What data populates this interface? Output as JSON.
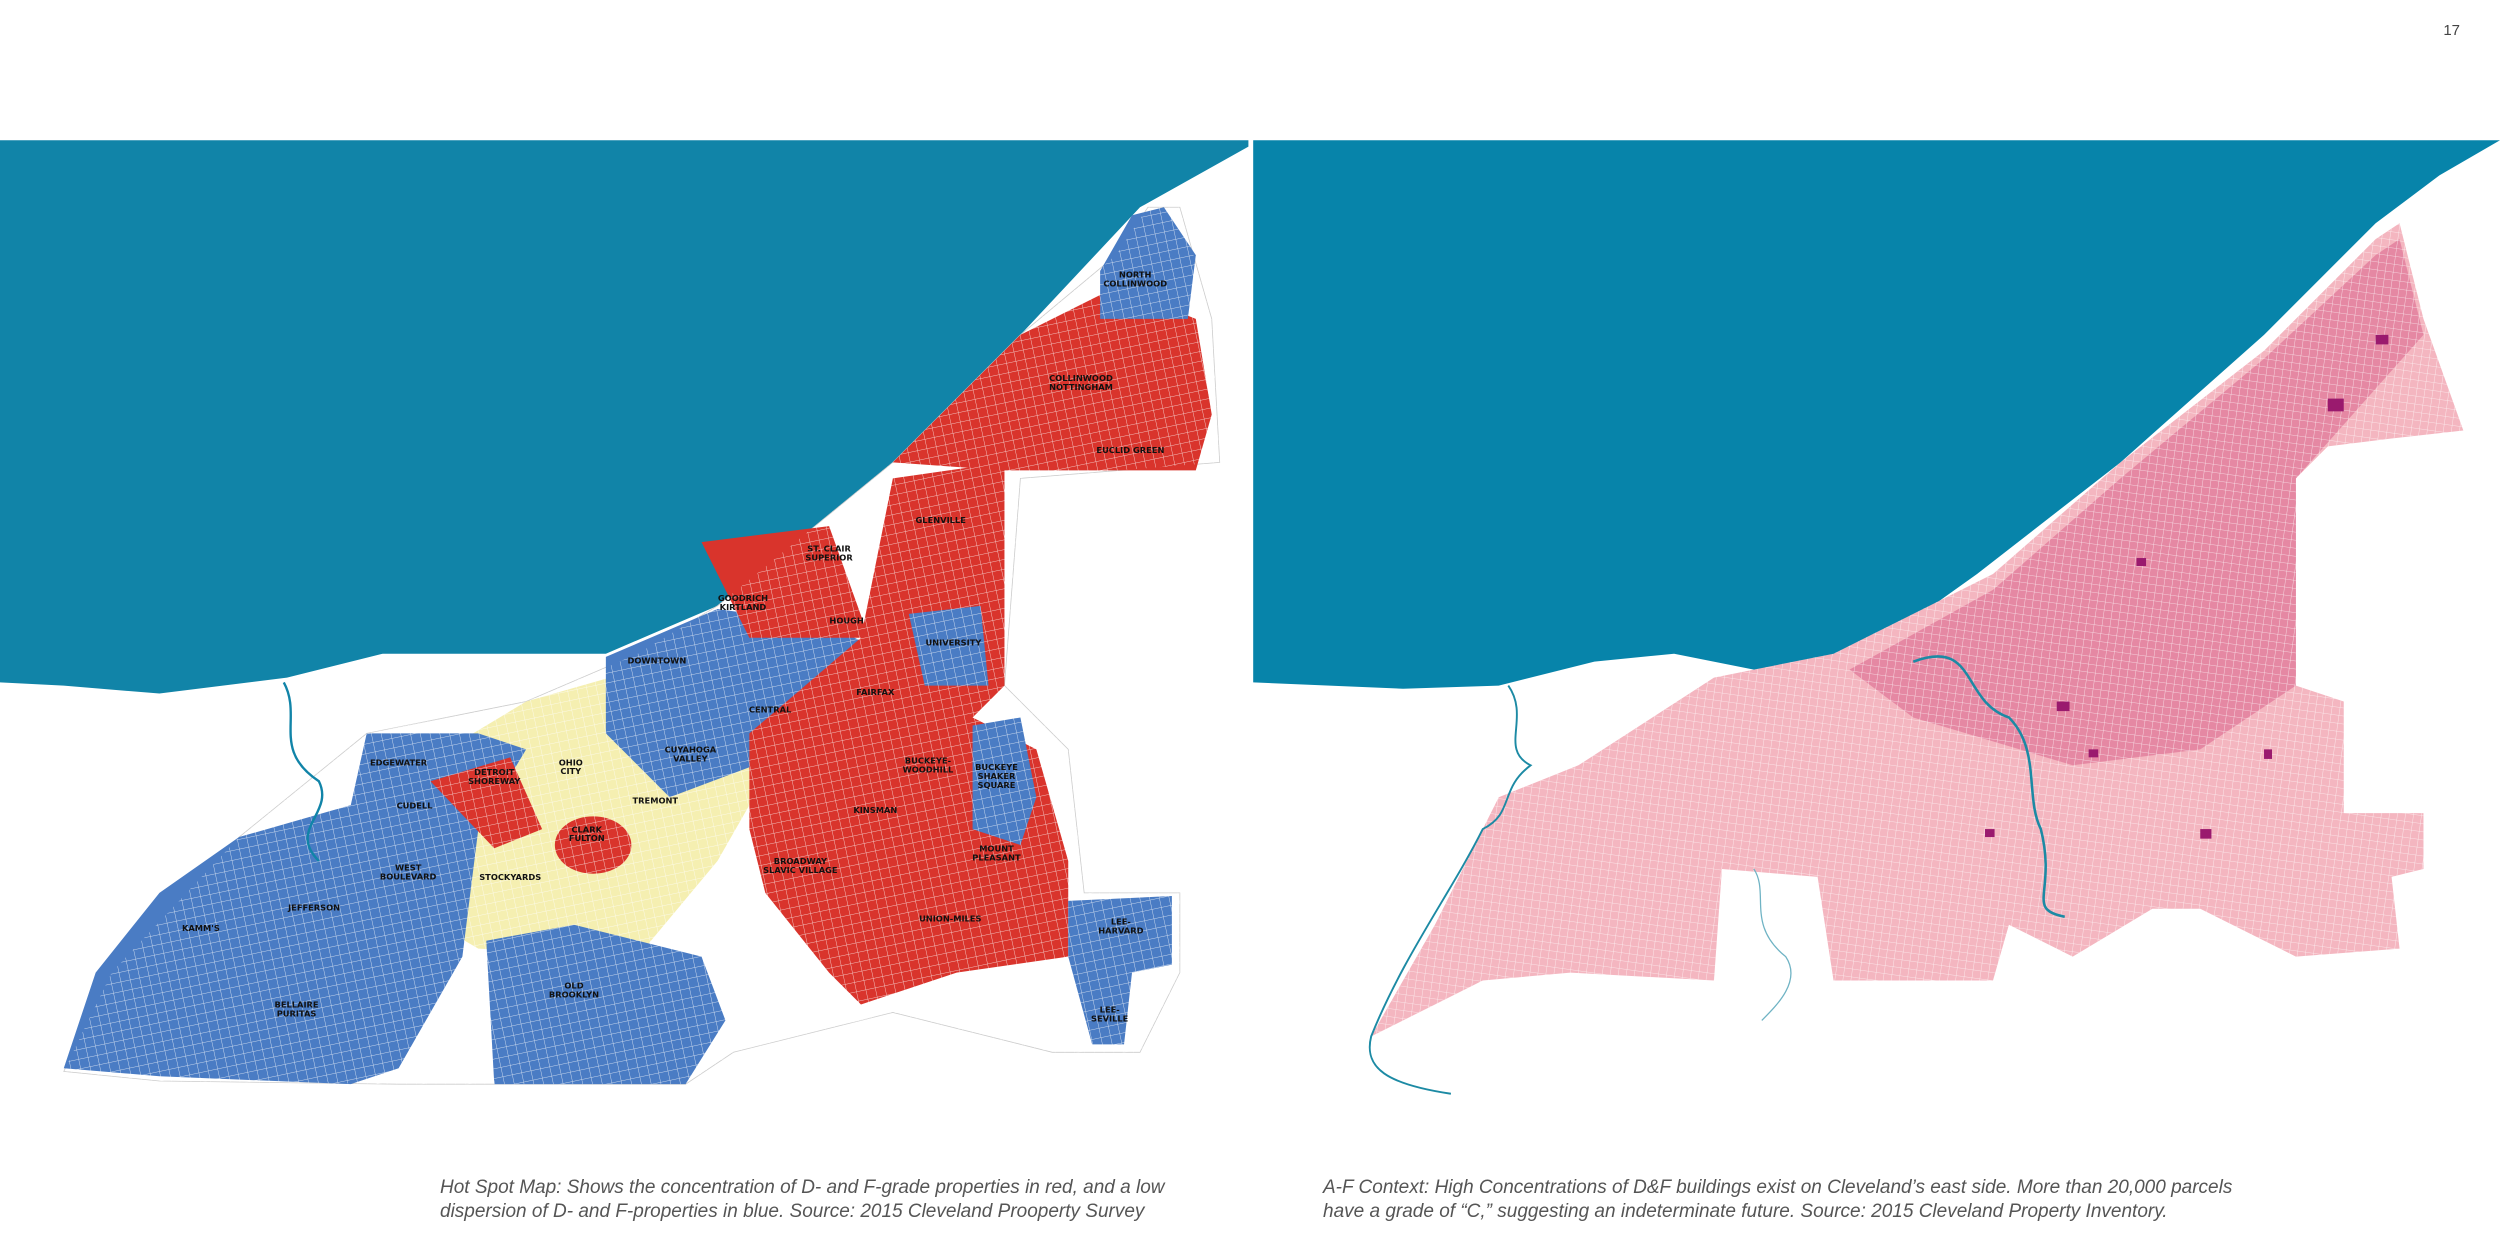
{
  "page_number": "17",
  "left_map": {
    "labels": [
      {
        "lines": [
          "NORTH",
          "COLLINWOOD"
        ]
      },
      {
        "lines": [
          "COLLINWOOD",
          "NOTTINGHAM"
        ]
      },
      {
        "lines": [
          "EUCLID GREEN"
        ]
      },
      {
        "lines": [
          "GLENVILLE"
        ]
      },
      {
        "lines": [
          "ST. CLAIR",
          "SUPERIOR"
        ]
      },
      {
        "lines": [
          "GOODRICH",
          "KIRTLAND"
        ]
      },
      {
        "lines": [
          "HOUGH"
        ]
      },
      {
        "lines": [
          "UNIVERSITY"
        ]
      },
      {
        "lines": [
          "DOWNTOWN"
        ]
      },
      {
        "lines": [
          "FAIRFAX"
        ]
      },
      {
        "lines": [
          "CENTRAL"
        ]
      },
      {
        "lines": [
          "CUYAHOGA",
          "VALLEY"
        ]
      },
      {
        "lines": [
          "EDGEWATER"
        ]
      },
      {
        "lines": [
          "DETROIT",
          "SHOREWAY"
        ]
      },
      {
        "lines": [
          "OHIO",
          "CITY"
        ]
      },
      {
        "lines": [
          "BUCKEYE-",
          "WOODHILL"
        ]
      },
      {
        "lines": [
          "BUCKEYE",
          "SHAKER",
          "SQUARE"
        ]
      },
      {
        "lines": [
          "TREMONT"
        ]
      },
      {
        "lines": [
          "CUDELL"
        ]
      },
      {
        "lines": [
          "KINSMAN"
        ]
      },
      {
        "lines": [
          "CLARK",
          "FULTON"
        ]
      },
      {
        "lines": [
          "MOUNT",
          "PLEASANT"
        ]
      },
      {
        "lines": [
          "BROADWAY",
          "SLAVIC VILLAGE"
        ]
      },
      {
        "lines": [
          "WEST",
          "BOULEVARD"
        ]
      },
      {
        "lines": [
          "STOCKYARDS"
        ]
      },
      {
        "lines": [
          "JEFFERSON"
        ]
      },
      {
        "lines": [
          "KAMM'S"
        ]
      },
      {
        "lines": [
          "UNION-MILES"
        ]
      },
      {
        "lines": [
          "LEE-",
          "HARVARD"
        ]
      },
      {
        "lines": [
          "OLD",
          "BROOKLYN"
        ]
      },
      {
        "lines": [
          "BELLAIRE",
          "PURITAS"
        ]
      },
      {
        "lines": [
          "LEE-",
          "SEVILLE"
        ]
      }
    ],
    "caption": "Hot Spot Map: Shows the concentration of D- and F-grade properties in red, and a low dispersion of D- and F-properties in blue. Source: 2015 Cleveland Prooperty Survey"
  },
  "right_map": {
    "caption": "A-F Context: High Concentrations of D&F buildings exist on Cleveland’s east side. More than 20,000 parcels have a grade of “C,” suggesting an indeterminate future. Source: 2015 Cleveland Property Inventory."
  }
}
